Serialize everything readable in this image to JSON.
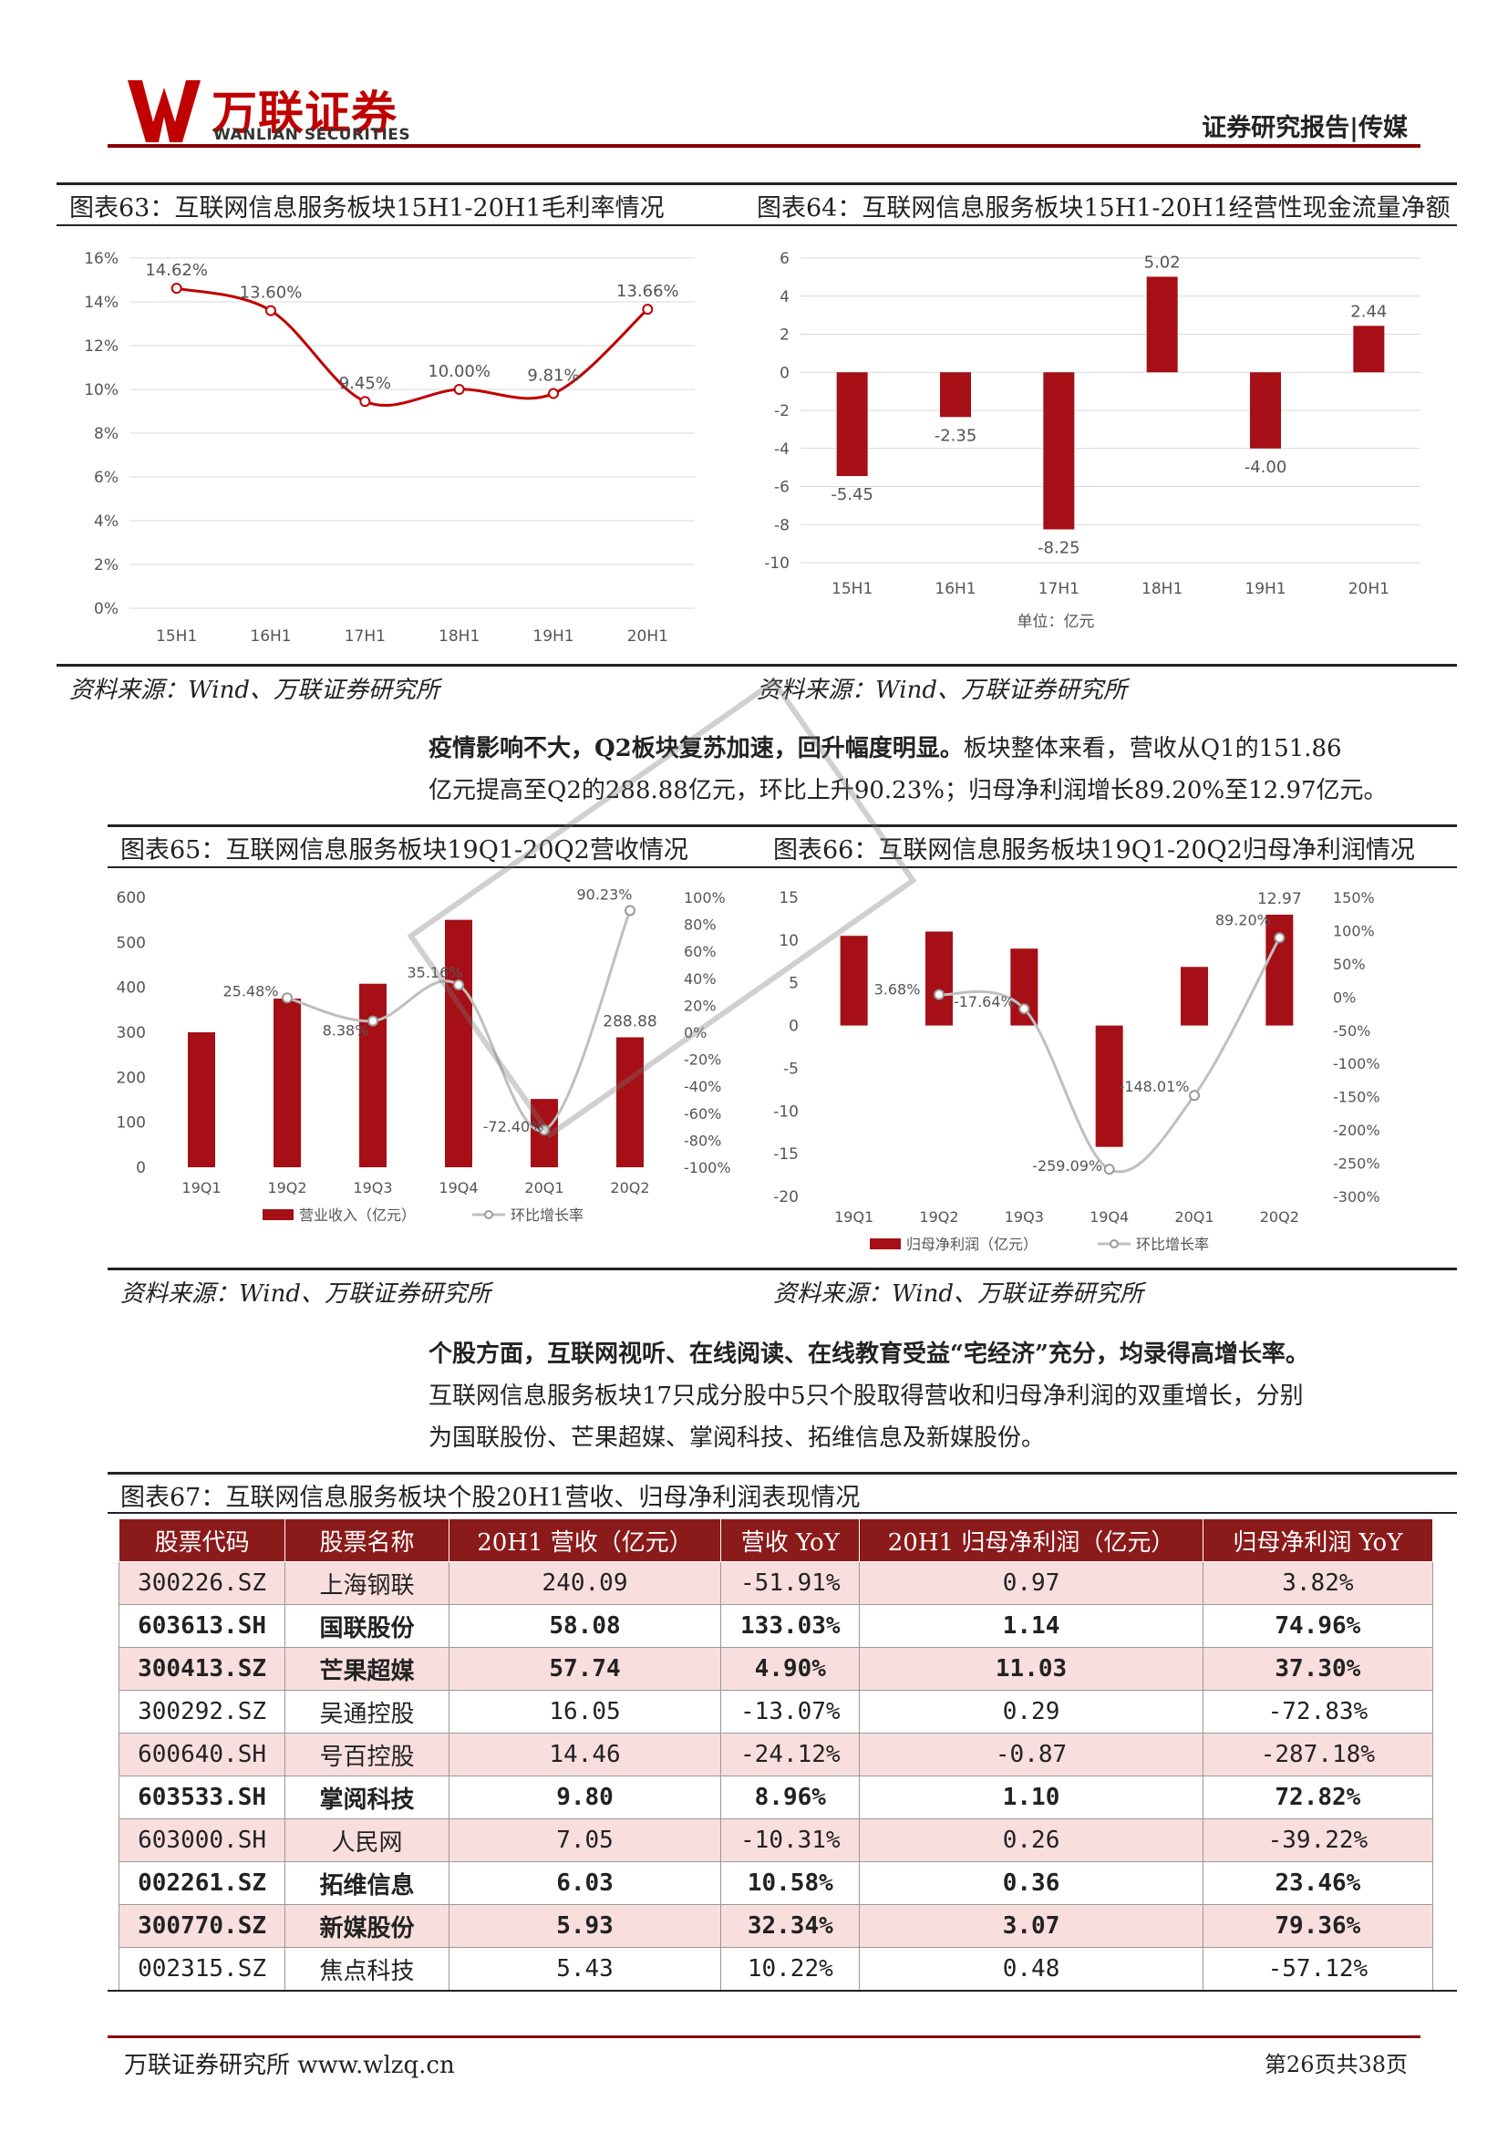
{
  "header": {
    "logo_cn": "万联证券",
    "logo_en": "WANLIAN SECURITIES",
    "right": "证券研究报告|传媒"
  },
  "fig63": {
    "title": "图表63：互联网信息服务板块15H1-20H1毛利率情况",
    "source": "资料来源：Wind、万联证券研究所"
  },
  "fig64": {
    "title": "图表64：互联网信息服务板块15H1-20H1经营性现金流量净额",
    "source": "资料来源：Wind、万联证券研究所"
  },
  "para1": {
    "bold": "疫情影响不大，Q2板块复苏加速，回升幅度明显。",
    "rest": "板块整体来看，营收从Q1的151.86",
    "line2": "亿元提高至Q2的288.88亿元，环比上升90.23%；归母净利润增长89.20%至12.97亿元。"
  },
  "fig65": {
    "title": "图表65：互联网信息服务板块19Q1-20Q2营收情况",
    "source": "资料来源：Wind、万联证券研究所"
  },
  "fig66": {
    "title": "图表66：互联网信息服务板块19Q1-20Q2归母净利润情况",
    "source": "资料来源：Wind、万联证券研究所"
  },
  "para2": {
    "bold": "个股方面，互联网视听、在线阅读、在线教育受益“宅经济”充分，均录得高增长率。",
    "line2": "互联网信息服务板块17只成分股中5只个股取得营收和归母净利润的双重增长，分别",
    "line3": "为国联股份、芒果超媒、掌阅科技、拓维信息及新媒股份。"
  },
  "fig67": {
    "title": "图表67：互联网信息服务板块个股20H1营收、归母净利润表现情况"
  },
  "table": {
    "headers": [
      "股票代码",
      "股票名称",
      "20H1 营收（亿元）",
      "营收 YoY",
      "20H1 归母净利润（亿元）",
      "归母净利润 YoY"
    ],
    "rows": [
      [
        "300226.SZ",
        "上海钢联",
        "240.09",
        "-51.91%",
        "0.97",
        "3.82%"
      ],
      [
        "603613.SH",
        "国联股份",
        "58.08",
        "133.03%",
        "1.14",
        "74.96%"
      ],
      [
        "300413.SZ",
        "芒果超媒",
        "57.74",
        "4.90%",
        "11.03",
        "37.30%"
      ],
      [
        "300292.SZ",
        "吴通控股",
        "16.05",
        "-13.07%",
        "0.29",
        "-72.83%"
      ],
      [
        "600640.SH",
        "号百控股",
        "14.46",
        "-24.12%",
        "-0.87",
        "-287.18%"
      ],
      [
        "603533.SH",
        "掌阅科技",
        "9.80",
        "8.96%",
        "1.10",
        "72.82%"
      ],
      [
        "603000.SH",
        "人民网",
        "7.05",
        "-10.31%",
        "0.26",
        "-39.22%"
      ],
      [
        "002261.SZ",
        "拓维信息",
        "6.03",
        "10.58%",
        "0.36",
        "23.46%"
      ],
      [
        "300770.SZ",
        "新媒股份",
        "5.93",
        "32.34%",
        "3.07",
        "79.36%"
      ],
      [
        "002315.SZ",
        "焦点科技",
        "5.43",
        "10.22%",
        "0.48",
        "-57.12%"
      ]
    ],
    "bold_rows": [
      1,
      2,
      5,
      7,
      8
    ]
  },
  "footer": {
    "left": "万联证券研究所 www.wlzq.cn",
    "right": "第26页共38页"
  },
  "chart_data": [
    {
      "type": "line",
      "title": "",
      "categories": [
        "15H1",
        "16H1",
        "17H1",
        "18H1",
        "19H1",
        "20H1"
      ],
      "values": [
        14.62,
        13.6,
        9.45,
        10.0,
        9.81,
        13.66
      ],
      "labels": [
        "14.62%",
        "13.60%",
        "9.45%",
        "10.00%",
        "9.81%",
        "13.66%"
      ],
      "ylim": [
        0,
        16
      ],
      "yticks": [
        "0%",
        "2%",
        "4%",
        "6%",
        "8%",
        "10%",
        "12%",
        "14%",
        "16%"
      ],
      "color": "#c00000",
      "grid": true
    },
    {
      "type": "bar",
      "title": "",
      "categories": [
        "15H1",
        "16H1",
        "17H1",
        "18H1",
        "19H1",
        "20H1"
      ],
      "values": [
        -5.45,
        -2.35,
        -8.25,
        5.02,
        -4.0,
        2.44
      ],
      "labels": [
        "-5.45",
        "-2.35",
        "-8.25",
        "5.02",
        "-4.00",
        "2.44"
      ],
      "ylim": [
        -10,
        6
      ],
      "yticks": [
        "-10",
        "-8",
        "-6",
        "-4",
        "-2",
        "0",
        "2",
        "4",
        "6"
      ],
      "unit_label": "单位：亿元",
      "color": "#a50f15",
      "grid": true
    },
    {
      "type": "bar",
      "title": "",
      "categories": [
        "19Q1",
        "19Q2",
        "19Q3",
        "19Q4",
        "20Q1",
        "20Q2"
      ],
      "series": [
        {
          "name": "营业收入（亿元）",
          "values": [
            300,
            375,
            408,
            550,
            151.86,
            288.88
          ]
        },
        {
          "name": "环比增长率",
          "values": [
            null,
            25.48,
            8.38,
            35.16,
            -72.4,
            90.23
          ]
        }
      ],
      "bar_labels": [
        "",
        "",
        "",
        "",
        "",
        "288.88"
      ],
      "line_labels": [
        "",
        "25.48%",
        "8.38%",
        "35.16%",
        "-72.40%",
        "90.23%"
      ],
      "ylim_left": [
        0,
        600
      ],
      "ylim_right": [
        -100,
        100
      ],
      "yticks_left": [
        "0",
        "100",
        "200",
        "300",
        "400",
        "500",
        "600"
      ],
      "yticks_right": [
        "-100%",
        "-80%",
        "-60%",
        "-40%",
        "-20%",
        "0%",
        "20%",
        "40%",
        "60%",
        "80%",
        "100%"
      ],
      "legend": "bottom"
    },
    {
      "type": "bar",
      "title": "",
      "categories": [
        "19Q1",
        "19Q2",
        "19Q3",
        "19Q4",
        "20Q1",
        "20Q2"
      ],
      "series": [
        {
          "name": "归母净利润（亿元）",
          "values": [
            10.5,
            11.0,
            9.0,
            -14.2,
            6.86,
            12.97
          ]
        },
        {
          "name": "环比增长率",
          "values": [
            null,
            3.68,
            -17.64,
            -259.09,
            -148.01,
            89.2
          ]
        }
      ],
      "bar_labels": [
        "",
        "",
        "",
        "",
        "",
        "12.97"
      ],
      "line_labels": [
        "",
        "3.68%",
        "-17.64%",
        "-259.09%",
        "-148.01%",
        "89.20%"
      ],
      "ylim_left": [
        -20,
        15
      ],
      "ylim_right": [
        -300,
        150
      ],
      "yticks_left": [
        "-20",
        "-15",
        "-10",
        "-5",
        "0",
        "5",
        "10",
        "15"
      ],
      "yticks_right": [
        "-300%",
        "-250%",
        "-200%",
        "-150%",
        "-100%",
        "-50%",
        "0%",
        "50%",
        "100%",
        "150%"
      ],
      "legend": "bottom"
    }
  ]
}
